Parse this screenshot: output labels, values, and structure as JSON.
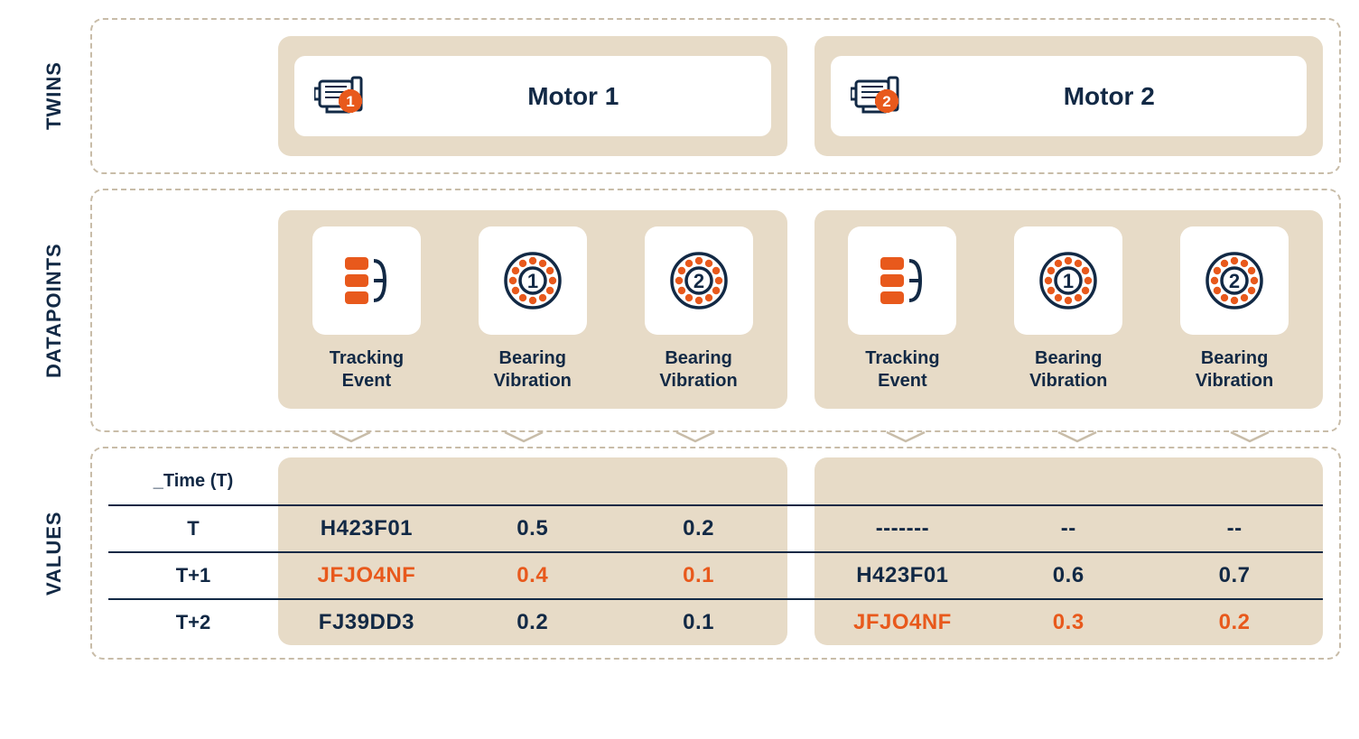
{
  "colors": {
    "text_primary": "#122945",
    "highlight": "#e8591c",
    "panel_bg": "#e7dbc7",
    "card_bg": "#ffffff",
    "dashed_border": "#c8bca8",
    "hr": "#122945"
  },
  "sections": {
    "twins": "TWINS",
    "datapoints": "DATAPOINTS",
    "values": "VALUES"
  },
  "motors": [
    {
      "title": "Motor 1",
      "badge": "1"
    },
    {
      "title": "Motor 2",
      "badge": "2"
    }
  ],
  "datapoints": [
    {
      "label_l1": "Tracking",
      "label_l2": "Event",
      "icon": "tracking",
      "num": ""
    },
    {
      "label_l1": "Bearing",
      "label_l2": "Vibration",
      "icon": "bearing",
      "num": "1"
    },
    {
      "label_l1": "Bearing",
      "label_l2": "Vibration",
      "icon": "bearing",
      "num": "2"
    }
  ],
  "values": {
    "time_header": "_Time (T)",
    "time_labels": [
      "T",
      "T+1",
      "T+2"
    ],
    "motor1": {
      "rows": [
        {
          "cells": [
            "H423F01",
            "0.5",
            "0.2"
          ],
          "highlight": false
        },
        {
          "cells": [
            "JFJO4NF",
            "0.4",
            "0.1"
          ],
          "highlight": true
        },
        {
          "cells": [
            "FJ39DD3",
            "0.2",
            "0.1"
          ],
          "highlight": false
        }
      ]
    },
    "motor2": {
      "rows": [
        {
          "cells": [
            "-------",
            "--",
            "--"
          ],
          "highlight": false
        },
        {
          "cells": [
            "H423F01",
            "0.6",
            "0.7"
          ],
          "highlight": false
        },
        {
          "cells": [
            "JFJO4NF",
            "0.3",
            "0.2"
          ],
          "highlight": true
        }
      ]
    }
  }
}
